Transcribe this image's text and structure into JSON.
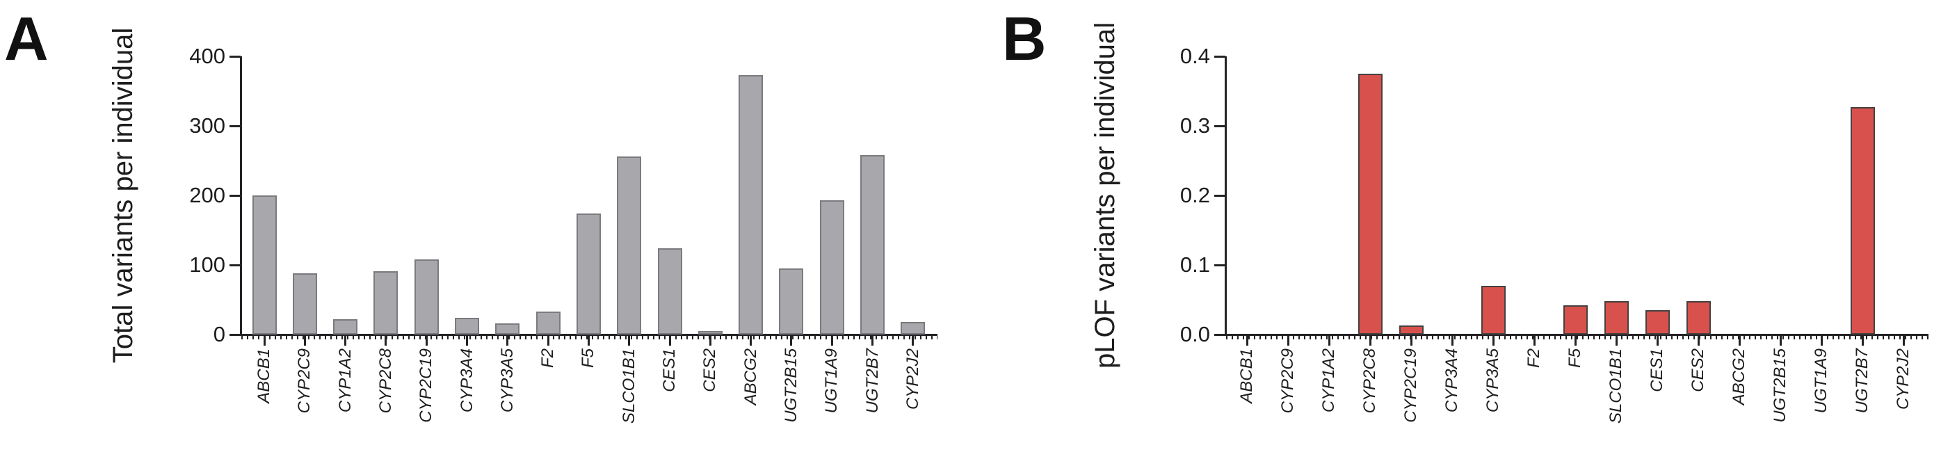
{
  "panels": [
    {
      "letter": "A",
      "y_title": "Total variants per individual"
    },
    {
      "letter": "B",
      "y_title": "pLOF variants per individual"
    }
  ],
  "chart_data": [
    {
      "type": "bar",
      "title": "",
      "xlabel": "",
      "ylabel": "Total variants per individual",
      "categories": [
        "ABCB1",
        "CYP2C9",
        "CYP1A2",
        "CYP2C8",
        "CYP2C19",
        "CYP3A4",
        "CYP3A5",
        "F2",
        "F5",
        "SLCO1B1",
        "CES1",
        "CES2",
        "ABCG2",
        "UGT2B15",
        "UGT1A9",
        "UGT2B7",
        "CYP2J2"
      ],
      "values": [
        200,
        88,
        22,
        91,
        108,
        24,
        16,
        33,
        174,
        256,
        124,
        5,
        373,
        95,
        193,
        258,
        18
      ],
      "y_ticks": [
        "0",
        "100",
        "200",
        "300",
        "400"
      ],
      "ylim": [
        0,
        400
      ],
      "grid": false,
      "legend_position": "none",
      "bar_color": "#a8a7ab",
      "bar_border": "#7b7a7f"
    },
    {
      "type": "bar",
      "title": "",
      "xlabel": "",
      "ylabel": "pLOF variants per individual",
      "categories": [
        "ABCB1",
        "CYP2C9",
        "CYP1A2",
        "CYP2C8",
        "CYP2C19",
        "CYP3A4",
        "CYP3A5",
        "F2",
        "F5",
        "SLCO1B1",
        "CES1",
        "CES2",
        "ABCG2",
        "UGT2B15",
        "UGT1A9",
        "UGT2B7",
        "CYP2J2"
      ],
      "values": [
        0,
        0,
        0,
        0.375,
        0.013,
        0,
        0.07,
        0,
        0.042,
        0.048,
        0.035,
        0.048,
        0,
        0,
        0,
        0.327,
        0
      ],
      "y_ticks": [
        "0.0",
        "0.1",
        "0.2",
        "0.3",
        "0.4"
      ],
      "ylim": [
        0,
        0.4
      ],
      "grid": false,
      "legend_position": "none",
      "bar_color": "#d8514c",
      "bar_border": "#454140"
    }
  ]
}
